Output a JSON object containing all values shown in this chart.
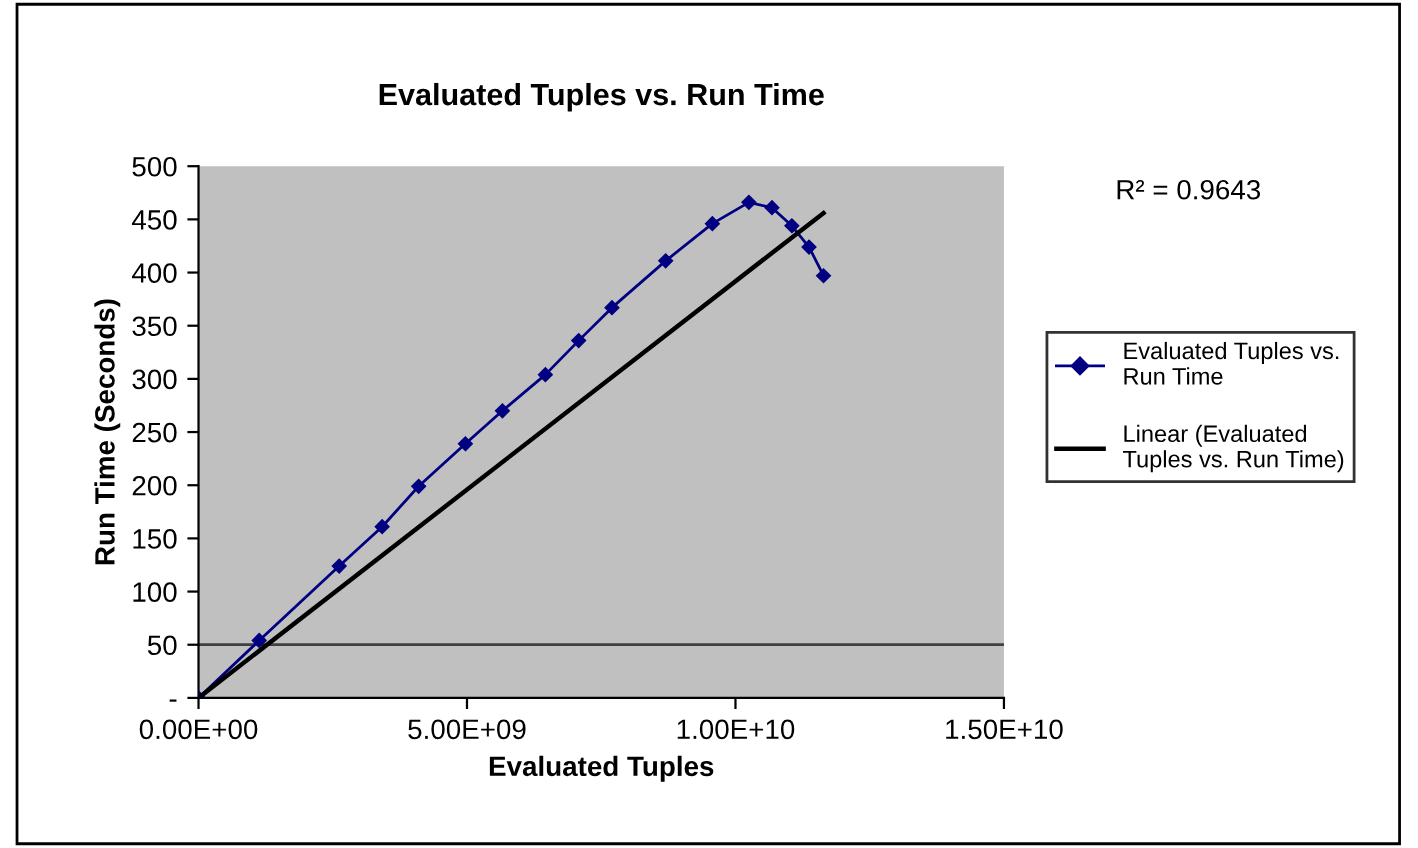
{
  "chart_data": {
    "type": "line",
    "title": "Evaluated Tuples vs. Run Time",
    "xlabel": "Evaluated Tuples",
    "ylabel": "Run Time (Seconds)",
    "series": [
      {
        "name": "Evaluated Tuples vs. Run Time",
        "color": "#000080",
        "marker": "diamond",
        "x": [
          0,
          1130000000.0,
          2620000000.0,
          3420000000.0,
          4100000000.0,
          4970000000.0,
          5660000000.0,
          6460000000.0,
          7080000000.0,
          7700000000.0,
          8700000000.0,
          9570000000.0,
          10250000000.0,
          10680000000.0,
          11050000000.0,
          11370000000.0,
          11640000000.0
        ],
        "values": [
          0,
          54,
          124,
          161,
          199,
          239,
          270,
          304,
          336,
          367,
          411,
          446,
          466,
          461,
          444,
          424,
          397
        ]
      },
      {
        "name": "Linear (Evaluated Tuples vs. Run Time)",
        "color": "#000000",
        "marker": "none",
        "x": [
          0,
          11640000000.0
        ],
        "values": [
          0,
          456
        ]
      }
    ],
    "xlim": [
      0,
      15000000000.0
    ],
    "xticks": [
      {
        "value": 0,
        "label": "0.00E+00"
      },
      {
        "value": 5000000000.0,
        "label": "5.00E+09"
      },
      {
        "value": 10000000000.0,
        "label": "1.00E+10"
      },
      {
        "value": 15000000000.0,
        "label": "1.50E+10"
      }
    ],
    "ylim": [
      0,
      500
    ],
    "yticks": [
      {
        "value": 0,
        "label": "-"
      },
      50,
      100,
      150,
      200,
      250,
      300,
      350,
      400,
      450,
      500
    ],
    "ref_lines": [
      {
        "axis": "y",
        "value": 50,
        "color": "#404040"
      }
    ],
    "annotations": [
      "R² = 0.9643"
    ],
    "grid": false,
    "legend": "right"
  }
}
